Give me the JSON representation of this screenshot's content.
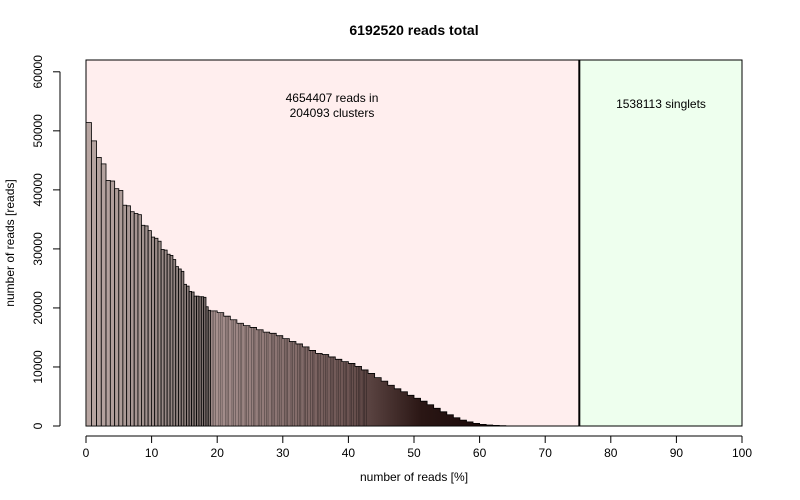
{
  "chart_data": {
    "type": "bar",
    "title": "6192520 reads total",
    "xlabel": "number of reads [%]",
    "ylabel": "number of reads [reads]",
    "xlim": [
      0,
      100
    ],
    "ylim": [
      0,
      62000
    ],
    "xticks": [
      "0",
      "10",
      "20",
      "30",
      "40",
      "50",
      "60",
      "70",
      "80",
      "90",
      "100"
    ],
    "yticks": [
      "0",
      "10000",
      "20000",
      "30000",
      "40000",
      "50000",
      "60000"
    ],
    "regions": [
      {
        "from": 0,
        "to": 75.2,
        "color": "#ffeeee",
        "label_lines": [
          "4654407 reads in",
          "204093 clusters"
        ]
      },
      {
        "from": 75.2,
        "to": 100,
        "color": "#eeffee",
        "label_lines": [
          "1538113 singlets"
        ]
      }
    ],
    "divider_x": 75.2,
    "bars": [
      {
        "x0": 0.0,
        "x1": 0.83,
        "v": 51400
      },
      {
        "x0": 0.83,
        "x1": 1.61,
        "v": 48300
      },
      {
        "x0": 1.61,
        "x1": 2.33,
        "v": 45500
      },
      {
        "x0": 2.33,
        "x1": 3.05,
        "v": 44400
      },
      {
        "x0": 3.05,
        "x1": 3.71,
        "v": 41600
      },
      {
        "x0": 3.71,
        "x1": 4.37,
        "v": 41500
      },
      {
        "x0": 4.37,
        "x1": 5.0,
        "v": 40200
      },
      {
        "x0": 5.0,
        "x1": 5.62,
        "v": 39900
      },
      {
        "x0": 5.62,
        "x1": 6.2,
        "v": 37400
      },
      {
        "x0": 6.2,
        "x1": 6.78,
        "v": 37300
      },
      {
        "x0": 6.78,
        "x1": 7.35,
        "v": 36300
      },
      {
        "x0": 7.35,
        "x1": 7.92,
        "v": 36000
      },
      {
        "x0": 7.92,
        "x1": 8.45,
        "v": 35800
      },
      {
        "x0": 8.45,
        "x1": 8.97,
        "v": 34000
      },
      {
        "x0": 8.97,
        "x1": 9.47,
        "v": 33900
      },
      {
        "x0": 9.47,
        "x1": 9.97,
        "v": 33100
      },
      {
        "x0": 9.97,
        "x1": 10.47,
        "v": 32000
      },
      {
        "x0": 10.47,
        "x1": 10.97,
        "v": 31800
      },
      {
        "x0": 10.97,
        "x1": 11.45,
        "v": 31300
      },
      {
        "x0": 11.45,
        "x1": 11.92,
        "v": 29900
      },
      {
        "x0": 11.92,
        "x1": 12.37,
        "v": 29800
      },
      {
        "x0": 12.37,
        "x1": 12.82,
        "v": 29100
      },
      {
        "x0": 12.82,
        "x1": 13.25,
        "v": 28900
      },
      {
        "x0": 13.25,
        "x1": 13.68,
        "v": 28200
      },
      {
        "x0": 13.68,
        "x1": 14.1,
        "v": 27000
      },
      {
        "x0": 14.1,
        "x1": 14.52,
        "v": 26600
      },
      {
        "x0": 14.52,
        "x1": 14.92,
        "v": 26200
      },
      {
        "x0": 14.92,
        "x1": 15.32,
        "v": 24000
      },
      {
        "x0": 15.32,
        "x1": 15.72,
        "v": 23700
      },
      {
        "x0": 15.72,
        "x1": 16.1,
        "v": 22800
      },
      {
        "x0": 16.1,
        "x1": 16.48,
        "v": 22700
      },
      {
        "x0": 16.48,
        "x1": 16.85,
        "v": 22000
      },
      {
        "x0": 16.85,
        "x1": 17.22,
        "v": 22000
      },
      {
        "x0": 17.22,
        "x1": 17.58,
        "v": 21900
      },
      {
        "x0": 17.58,
        "x1": 17.94,
        "v": 21900
      },
      {
        "x0": 17.94,
        "x1": 18.29,
        "v": 21800
      },
      {
        "x0": 18.29,
        "x1": 18.63,
        "v": 20200
      },
      {
        "x0": 18.63,
        "x1": 18.97,
        "v": 19600
      }
    ],
    "bulk": [
      [
        18.97,
        19500
      ],
      [
        20,
        19200
      ],
      [
        21,
        18600
      ],
      [
        22,
        18000
      ],
      [
        23,
        17400
      ],
      [
        24,
        17000
      ],
      [
        25,
        16700
      ],
      [
        26,
        16300
      ],
      [
        27,
        15900
      ],
      [
        28,
        15700
      ],
      [
        29,
        15300
      ],
      [
        30,
        14800
      ],
      [
        31,
        14300
      ],
      [
        32,
        13900
      ],
      [
        33,
        13400
      ],
      [
        34,
        12800
      ],
      [
        35,
        12300
      ],
      [
        36,
        12100
      ],
      [
        37,
        11700
      ],
      [
        38,
        11300
      ],
      [
        39,
        10900
      ],
      [
        40,
        10600
      ],
      [
        41,
        10100
      ],
      [
        42,
        9500
      ],
      [
        43,
        8900
      ],
      [
        44,
        8200
      ],
      [
        45,
        7600
      ],
      [
        46,
        6900
      ],
      [
        47,
        6300
      ],
      [
        48,
        5800
      ],
      [
        49,
        5200
      ],
      [
        50,
        4700
      ],
      [
        51,
        4200
      ],
      [
        52,
        3600
      ],
      [
        53,
        3000
      ],
      [
        54,
        2400
      ],
      [
        55,
        1900
      ],
      [
        56,
        1400
      ],
      [
        57,
        1000
      ],
      [
        58,
        700
      ],
      [
        59,
        450
      ],
      [
        60,
        280
      ],
      [
        61,
        170
      ],
      [
        62,
        100
      ],
      [
        63,
        50
      ],
      [
        64,
        20
      ],
      [
        65,
        0
      ]
    ]
  }
}
